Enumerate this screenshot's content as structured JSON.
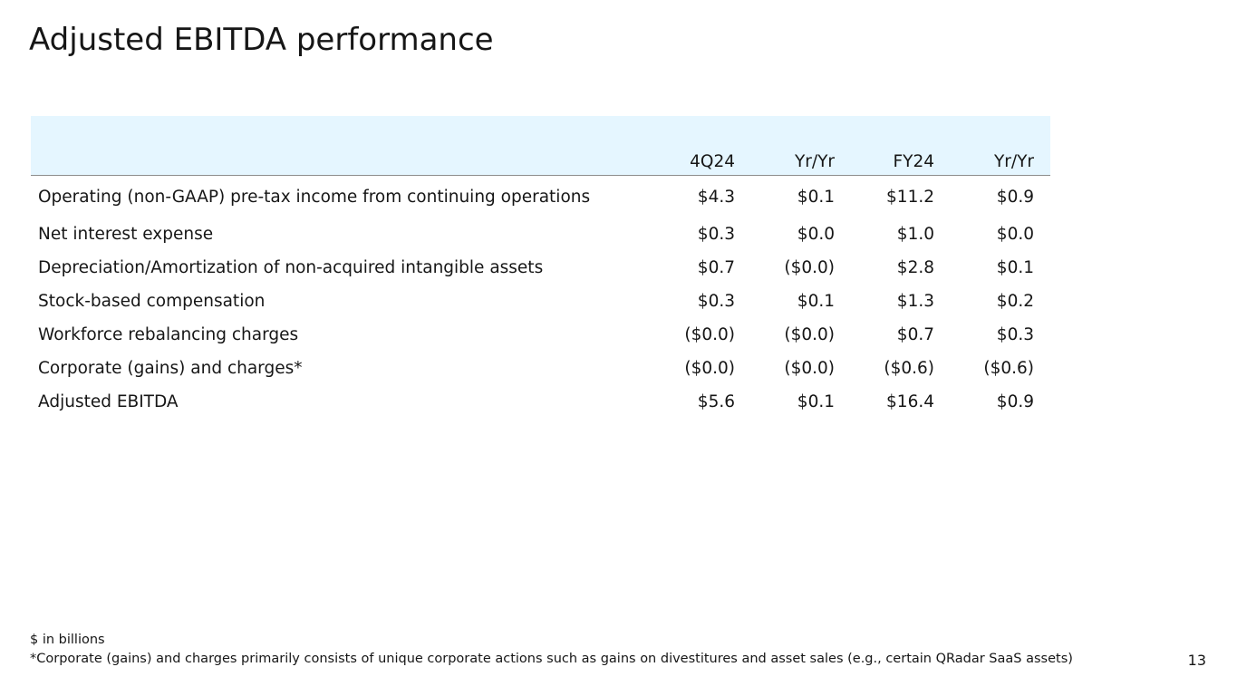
{
  "title": "Adjusted EBITDA performance",
  "table": {
    "headers": [
      "",
      "4Q24",
      "Yr/Yr",
      "FY24",
      "Yr/Yr"
    ],
    "rows": [
      {
        "label": "Operating (non-GAAP) pre-tax income from continuing operations",
        "q4": "$4.3",
        "q4_yy": "$0.1",
        "fy": "$11.2",
        "fy_yy": "$0.9"
      },
      {
        "label": "Net interest expense",
        "q4": "$0.3",
        "q4_yy": "$0.0",
        "fy": "$1.0",
        "fy_yy": "$0.0"
      },
      {
        "label": "Depreciation/Amortization of non-acquired intangible assets",
        "q4": "$0.7",
        "q4_yy": "($0.0)",
        "fy": "$2.8",
        "fy_yy": "$0.1"
      },
      {
        "label": "Stock-based compensation",
        "q4": "$0.3",
        "q4_yy": "$0.1",
        "fy": "$1.3",
        "fy_yy": "$0.2"
      },
      {
        "label": "Workforce rebalancing charges",
        "q4": "($0.0)",
        "q4_yy": "($0.0)",
        "fy": "$0.7",
        "fy_yy": "$0.3"
      },
      {
        "label": "Corporate (gains) and charges*",
        "q4": "($0.0)",
        "q4_yy": "($0.0)",
        "fy": "($0.6)",
        "fy_yy": "($0.6)"
      },
      {
        "label": "Adjusted EBITDA",
        "q4": "$5.6",
        "q4_yy": "$0.1",
        "fy": "$16.4",
        "fy_yy": "$0.9"
      }
    ]
  },
  "footnotes": {
    "units": "$ in billions",
    "corporate_note": "*Corporate (gains) and charges primarily consists of unique corporate actions such as gains on divestitures and asset sales (e.g., certain QRadar SaaS assets)"
  },
  "page_number": "13",
  "colors": {
    "header_bg": "#e5f6ff",
    "text": "#161616",
    "header_rule": "#8d8d8d"
  }
}
